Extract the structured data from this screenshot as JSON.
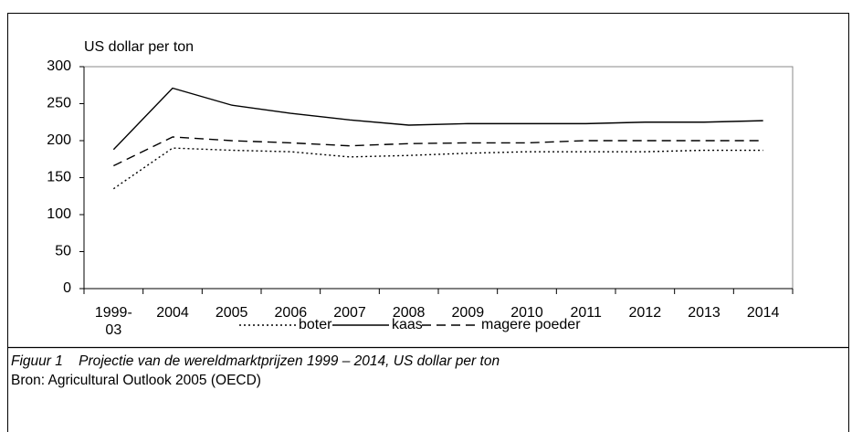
{
  "chart_data": {
    "type": "line",
    "y_label": "US dollar per ton",
    "categories": [
      "1999-03",
      "2004",
      "2005",
      "2006",
      "2007",
      "2008",
      "2009",
      "2010",
      "2011",
      "2012",
      "2013",
      "2014"
    ],
    "series": [
      {
        "name": "boter",
        "color": "#000000",
        "dash": "dotted",
        "values": [
          135,
          190,
          187,
          185,
          178,
          180,
          183,
          185,
          185,
          185,
          187,
          187
        ]
      },
      {
        "name": "kaas",
        "color": "#000000",
        "dash": "solid",
        "values": [
          188,
          271,
          248,
          237,
          228,
          221,
          223,
          223,
          223,
          225,
          225,
          227
        ]
      },
      {
        "name": "magere poeder",
        "color": "#000000",
        "dash": "dashed",
        "values": [
          166,
          205,
          200,
          197,
          193,
          196,
          197,
          197,
          200,
          200,
          200,
          200
        ]
      }
    ],
    "ylim": [
      0,
      300
    ],
    "yticks": [
      0,
      50,
      100,
      150,
      200,
      250,
      300
    ],
    "legend": "bottom",
    "figure_label": "Figuur 1",
    "caption": "Projectie van de wereldmarktprijzen 1999 – 2014, US dollar per ton",
    "source": "Bron: Agricultural Outlook 2005 (OECD)"
  }
}
